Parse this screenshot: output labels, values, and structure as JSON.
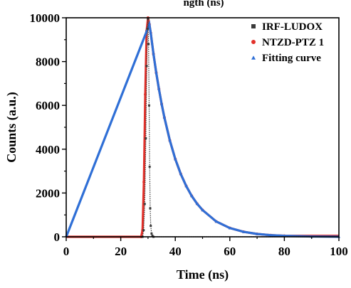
{
  "chart_data": {
    "type": "scatter",
    "title": "",
    "top_title_fragment": "ngth (ns)",
    "xlabel": "Time (ns)",
    "ylabel": "Counts (a.u.)",
    "xlim": [
      0,
      100
    ],
    "ylim": [
      0,
      10000
    ],
    "x_ticks": [
      0,
      20,
      40,
      60,
      80,
      100
    ],
    "y_ticks": [
      0,
      2000,
      4000,
      6000,
      8000,
      10000
    ],
    "grid": false,
    "legend_position": "top-right",
    "series": [
      {
        "name": "IRF-LUDOX",
        "color": "#3a3a3a",
        "marker": "square",
        "x": [
          28.0,
          28.4,
          28.8,
          29.2,
          29.5,
          29.8,
          30.0,
          30.2,
          30.4,
          30.6,
          30.8,
          31.0,
          31.3,
          31.6,
          32.0
        ],
        "y": [
          0,
          300,
          1500,
          4500,
          7800,
          9500,
          9950,
          8800,
          6000,
          3200,
          1300,
          500,
          150,
          50,
          0
        ]
      },
      {
        "name": "NTZD-PTZ 1",
        "color": "#e2302a",
        "marker": "circle",
        "x": [
          27.5,
          28.0,
          28.5,
          29.0,
          29.5,
          30.0,
          30.5,
          31,
          32,
          33,
          34,
          35,
          36,
          38,
          40,
          42,
          44,
          46,
          48,
          50,
          55,
          60,
          65,
          70,
          75,
          80
        ],
        "y": [
          0,
          300,
          2500,
          6500,
          9400,
          10000,
          9700,
          9300,
          8350,
          7500,
          6750,
          6060,
          5450,
          4400,
          3550,
          2870,
          2320,
          1870,
          1510,
          1220,
          700,
          400,
          230,
          130,
          75,
          45
        ]
      },
      {
        "name": "Fitting curve",
        "color": "#2f6fd6",
        "marker": "triangle",
        "x": [
          30.5,
          31,
          32,
          33,
          34,
          35,
          36,
          38,
          40,
          42,
          44,
          46,
          48,
          50,
          55,
          60,
          65,
          70,
          75,
          80,
          90,
          100
        ],
        "y": [
          9700,
          9300,
          8350,
          7500,
          6750,
          6060,
          5450,
          4400,
          3550,
          2870,
          2320,
          1870,
          1510,
          1220,
          700,
          400,
          230,
          130,
          75,
          45,
          15,
          5
        ]
      }
    ]
  }
}
